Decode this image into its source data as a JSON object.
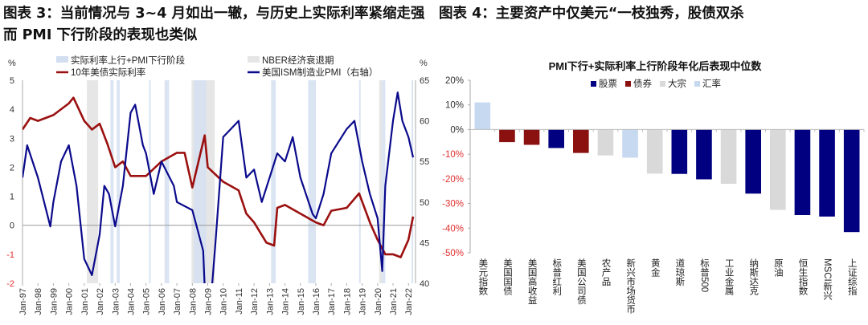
{
  "titles": {
    "left": "图表 3：当前情况与 3~4 月如出一辙，与历史上实际利率紧缩走强而 PMI 下行阶段的表现也类似",
    "right": "图表 4：主要资产中仅美元“一枝独秀，股债双杀"
  },
  "chart_data": [
    {
      "type": "line",
      "left_unit": "%",
      "right_unit": "%",
      "ylim_left": [
        -2,
        5
      ],
      "ylim_right": [
        40,
        65
      ],
      "yticks_left": [
        "5",
        "4",
        "3",
        "2",
        "1",
        "0",
        "-1",
        "-2"
      ],
      "yticks_right": [
        "65",
        "60",
        "55",
        "50",
        "45",
        "40"
      ],
      "xticks": [
        "Jan-97",
        "Jan-98",
        "Jan-99",
        "Jan-00",
        "Jan-01",
        "Jan-02",
        "Jan-03",
        "Jan-04",
        "Jan-05",
        "Jan-06",
        "Jan-07",
        "Jan-08",
        "Jan-09",
        "Jan-10",
        "Jan-11",
        "Jan-12",
        "Jan-13",
        "Jan-14",
        "Jan-15",
        "Jan-16",
        "Jan-17",
        "Jan-18",
        "Jan-19",
        "Jan-20",
        "Jan-21",
        "Jan-22"
      ],
      "legend": {
        "band_blue": "实际利率上行+PMI下行阶段",
        "band_gray": "NBER经济衰退期",
        "series_red": "10年美债实际利率",
        "series_blue": "美国ISM制造业PMI（右轴）"
      },
      "colors": {
        "real_rate": "#9b1010",
        "pmi": "#0a0a8c",
        "band_blue": "#d3dff0",
        "band_gray": "#e6e6e6"
      },
      "bands_blue": [
        [
          2002.7,
          2002.9
        ],
        [
          2003.1,
          2003.3
        ],
        [
          2005.2,
          2005.3
        ],
        [
          2006.2,
          2006.5
        ],
        [
          2008.1,
          2008.9
        ],
        [
          2013.1,
          2013.4
        ],
        [
          2015.5,
          2016.0
        ],
        [
          2018.8,
          2018.9
        ],
        [
          2020.3,
          2020.5
        ],
        [
          2022.2,
          2022.3
        ]
      ],
      "bands_gray": [
        [
          2001.17,
          2001.9
        ],
        [
          2007.95,
          2009.45
        ],
        [
          2020.1,
          2020.3
        ]
      ],
      "series": [
        {
          "name": "10年美债实际利率",
          "axis": "left",
          "x": [
            1997,
            1997.5,
            1998,
            1999,
            2000,
            2000.3,
            2001,
            2001.5,
            2002,
            2002.5,
            2003,
            2003.5,
            2004,
            2005,
            2006,
            2007,
            2007.5,
            2008,
            2008.8,
            2009,
            2010,
            2011,
            2011.5,
            2012,
            2012.8,
            2013.3,
            2013.5,
            2014,
            2015,
            2016,
            2016.5,
            2017,
            2018,
            2018.8,
            2019.5,
            2020,
            2020.5,
            2021,
            2021.5,
            2022,
            2022.3
          ],
          "y": [
            3.3,
            3.7,
            3.6,
            3.8,
            4.2,
            4.4,
            3.6,
            3.3,
            3.5,
            2.8,
            2.0,
            2.2,
            1.7,
            1.7,
            2.2,
            2.5,
            2.5,
            1.3,
            3.1,
            2.0,
            1.5,
            1.2,
            0.4,
            0.1,
            -0.6,
            -0.7,
            0.6,
            0.7,
            0.4,
            0.1,
            0.0,
            0.5,
            0.6,
            1.1,
            0.1,
            -0.5,
            -1.0,
            -1.0,
            -1.1,
            -0.5,
            0.3
          ]
        },
        {
          "name": "美国ISM制造业PMI（右轴）",
          "axis": "right",
          "x": [
            1997,
            1997.3,
            1998,
            1998.8,
            1999,
            1999.5,
            2000,
            2000.5,
            2001,
            2001.5,
            2002,
            2002.3,
            2002.6,
            2003,
            2003.5,
            2004,
            2004.3,
            2004.8,
            2005,
            2005.5,
            2006,
            2006.8,
            2007,
            2008,
            2008.7,
            2008.9,
            2009,
            2009.5,
            2010,
            2011,
            2011.5,
            2012,
            2012.5,
            2013,
            2013.5,
            2014,
            2014.5,
            2015,
            2015.8,
            2016,
            2016.5,
            2017,
            2018,
            2018.5,
            2019,
            2019.5,
            2020,
            2020.3,
            2020.5,
            2021,
            2021.3,
            2021.6,
            2022,
            2022.3
          ],
          "y": [
            53,
            57,
            53,
            47,
            50,
            55,
            57,
            52,
            43,
            41,
            46,
            52,
            51,
            47,
            52,
            61,
            62,
            57,
            56,
            51,
            55,
            52,
            50,
            49,
            44,
            35,
            33,
            45,
            58,
            60,
            53,
            54,
            50,
            53,
            56,
            55,
            58,
            53,
            48.5,
            48,
            51,
            56,
            59,
            60,
            55,
            51,
            48,
            41.5,
            52,
            60,
            63.5,
            60,
            58,
            55.5
          ]
        }
      ]
    },
    {
      "type": "bar",
      "title": "PMI下行+实际利率上行阶段年化后表现中位数",
      "ylim": [
        -50,
        20
      ],
      "yticks": [
        "20%",
        "10%",
        "0%",
        "-10%",
        "-20%",
        "-30%",
        "-40%",
        "-50%"
      ],
      "legend": [
        "股票",
        "债券",
        "大宗",
        "汇率"
      ],
      "colors": {
        "股票": "#000080",
        "债券": "#8b1010",
        "大宗": "#d9d9d9",
        "汇率": "#c6d9f0"
      },
      "categories": [
        "美元指数",
        "美国国债",
        "美国高收益",
        "标普红利",
        "美国公司债",
        "农产品",
        "新兴市场货币",
        "黄金",
        "道琼斯",
        "标普500",
        "工业金属",
        "纳斯达克",
        "原油",
        "恒生指数",
        "MSCI新兴",
        "上证综指"
      ],
      "groups": [
        "汇率",
        "债券",
        "债券",
        "股票",
        "债券",
        "大宗",
        "汇率",
        "大宗",
        "股票",
        "股票",
        "大宗",
        "股票",
        "大宗",
        "股票",
        "股票",
        "股票"
      ],
      "values": [
        11,
        -5.1,
        -6.2,
        -7.5,
        -9.5,
        -10.5,
        -11.4,
        -17.9,
        -18,
        -20.2,
        -22,
        -26,
        -32.6,
        -34.7,
        -35.3,
        -41.6
      ]
    }
  ]
}
